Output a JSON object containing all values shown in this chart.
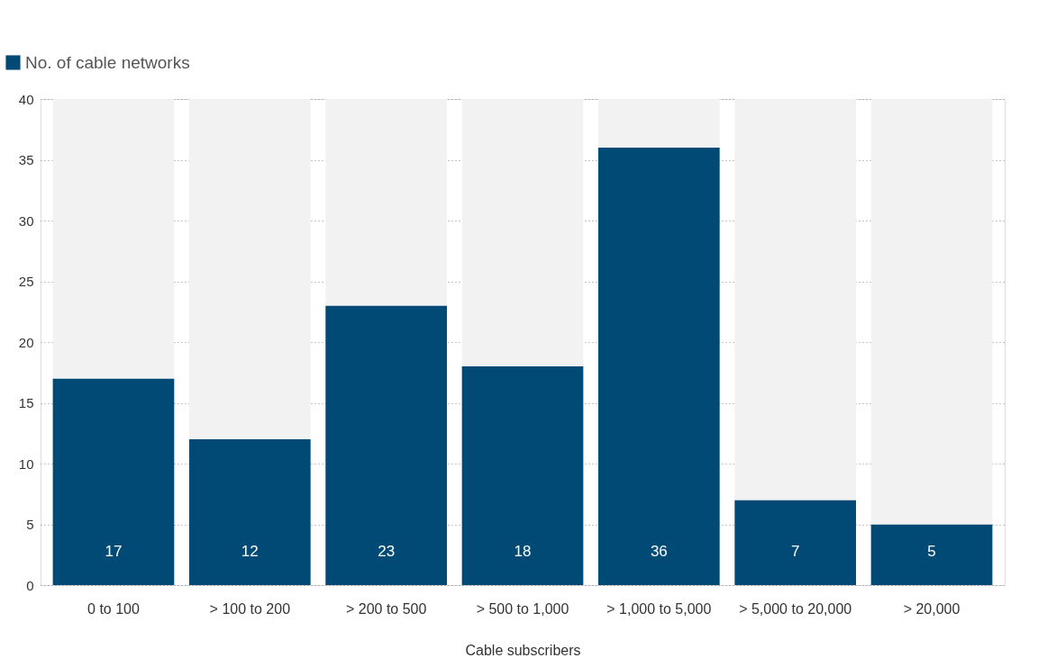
{
  "chart_data": {
    "type": "bar",
    "xlabel": "Cable subscribers",
    "stacked": true,
    "categories": [
      "0 to 100",
      "> 100 to 200",
      "> 200 to 500",
      "> 500 to 1,000",
      "> 1,000 to 5,000",
      "> 5,000 to 20,000",
      "> 20,000"
    ],
    "series": [
      {
        "name": "No. of cable networks",
        "color": "#004a75",
        "values": [
          17,
          12,
          23,
          18,
          36,
          7,
          5
        ],
        "data_labels": true
      },
      {
        "color": "#f2f2f2",
        "values": [
          23,
          28,
          17,
          22,
          4,
          33,
          35
        ]
      }
    ],
    "ylim": [
      0,
      40
    ],
    "yticks": [
      0,
      5,
      10,
      15,
      20,
      25,
      30,
      35,
      40
    ],
    "grid": "y",
    "legend": "top left"
  }
}
